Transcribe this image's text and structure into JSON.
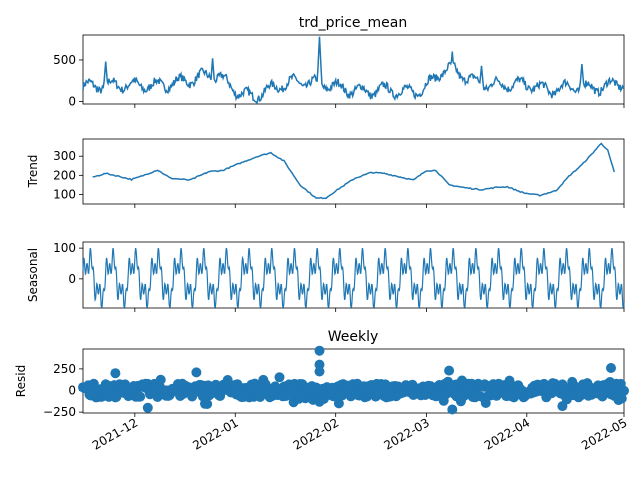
{
  "figure": {
    "suptitle": "Weekly"
  },
  "colors": {
    "series": "#1f77b4",
    "axis": "#000000",
    "background": "#ffffff"
  },
  "chart_data": [
    {
      "type": "line",
      "title": "trd_price_mean",
      "ylabel": "",
      "ylim": [
        -30,
        800
      ],
      "yticks": [
        0,
        500
      ],
      "x_start": "2021-11-15",
      "x_end": "2022-05-01",
      "anchors": [
        [
          "2021-11-15",
          180
        ],
        [
          "2021-11-25",
          200
        ],
        [
          "2021-12-05",
          190
        ],
        [
          "2021-12-10",
          200
        ],
        [
          "2021-12-18",
          260
        ],
        [
          "2021-12-24",
          320
        ],
        [
          "2021-12-27",
          300
        ],
        [
          "2022-01-02",
          110
        ],
        [
          "2022-01-06",
          50
        ],
        [
          "2022-01-10",
          120
        ],
        [
          "2022-01-15",
          200
        ],
        [
          "2022-01-20",
          240
        ],
        [
          "2022-01-25",
          220
        ],
        [
          "2022-01-30",
          200
        ],
        [
          "2022-02-05",
          140
        ],
        [
          "2022-02-12",
          120
        ],
        [
          "2022-02-17",
          150
        ],
        [
          "2022-02-22",
          110
        ],
        [
          "2022-02-28",
          140
        ],
        [
          "2022-03-05",
          350
        ],
        [
          "2022-03-09",
          400
        ],
        [
          "2022-03-15",
          250
        ],
        [
          "2022-03-20",
          200
        ],
        [
          "2022-03-28",
          210
        ],
        [
          "2022-04-02",
          200
        ],
        [
          "2022-04-08",
          130
        ],
        [
          "2022-04-14",
          180
        ],
        [
          "2022-04-22",
          160
        ],
        [
          "2022-05-01",
          230
        ]
      ],
      "peaks": [
        [
          "2021-11-22",
          480
        ],
        [
          "2021-12-25",
          520
        ],
        [
          "2022-01-27",
          780
        ],
        [
          "2022-03-09",
          600
        ],
        [
          "2022-03-18",
          430
        ],
        [
          "2022-04-18",
          450
        ]
      ]
    },
    {
      "type": "line",
      "title": "",
      "ylabel": "Trend",
      "ylim": [
        50,
        390
      ],
      "yticks": [
        100,
        200,
        300
      ],
      "x_start": "2021-11-18",
      "x_end": "2022-04-28",
      "anchors": [
        [
          "2021-11-18",
          190
        ],
        [
          "2021-11-22",
          210
        ],
        [
          "2021-11-26",
          195
        ],
        [
          "2021-11-30",
          178
        ],
        [
          "2021-12-03",
          195
        ],
        [
          "2021-12-08",
          228
        ],
        [
          "2021-12-12",
          185
        ],
        [
          "2021-12-18",
          175
        ],
        [
          "2021-12-24",
          220
        ],
        [
          "2021-12-28",
          225
        ],
        [
          "2022-01-02",
          260
        ],
        [
          "2022-01-08",
          300
        ],
        [
          "2022-01-12",
          318
        ],
        [
          "2022-01-16",
          275
        ],
        [
          "2022-01-21",
          150
        ],
        [
          "2022-01-26",
          80
        ],
        [
          "2022-01-29",
          82
        ],
        [
          "2022-02-02",
          130
        ],
        [
          "2022-02-07",
          185
        ],
        [
          "2022-02-12",
          215
        ],
        [
          "2022-02-16",
          210
        ],
        [
          "2022-02-20",
          195
        ],
        [
          "2022-02-25",
          175
        ],
        [
          "2022-03-01",
          225
        ],
        [
          "2022-03-04",
          225
        ],
        [
          "2022-03-08",
          150
        ],
        [
          "2022-03-13",
          135
        ],
        [
          "2022-03-18",
          125
        ],
        [
          "2022-03-23",
          138
        ],
        [
          "2022-03-26",
          140
        ],
        [
          "2022-03-31",
          108
        ],
        [
          "2022-04-05",
          95
        ],
        [
          "2022-04-10",
          120
        ],
        [
          "2022-04-14",
          195
        ],
        [
          "2022-04-18",
          255
        ],
        [
          "2022-04-21",
          310
        ],
        [
          "2022-04-24",
          368
        ],
        [
          "2022-04-26",
          330
        ],
        [
          "2022-04-28",
          215
        ]
      ]
    },
    {
      "type": "line",
      "title": "",
      "ylabel": "Seasonal",
      "ylim": [
        -95,
        120
      ],
      "yticks": [
        0,
        100
      ],
      "x_start": "2021-11-15",
      "x_end": "2022-05-01",
      "amplitude": 100,
      "period_days": 7
    },
    {
      "type": "scatter",
      "title": "",
      "ylabel": "Resid",
      "ylim": [
        -260,
        480
      ],
      "yticks": [
        -250,
        0,
        250
      ],
      "x_start": "2021-11-15",
      "x_end": "2022-05-01",
      "outliers": [
        [
          "2021-11-25",
          200
        ],
        [
          "2021-12-20",
          210
        ],
        [
          "2022-01-27",
          460
        ],
        [
          "2022-01-27",
          300
        ],
        [
          "2022-01-27",
          220
        ],
        [
          "2022-03-08",
          230
        ],
        [
          "2022-03-09",
          -220
        ],
        [
          "2022-04-27",
          260
        ],
        [
          "2021-12-05",
          -200
        ],
        [
          "2022-04-12",
          -180
        ]
      ]
    }
  ],
  "x_axis": {
    "tick_labels": [
      "2021-12",
      "2022-01",
      "2022-02",
      "2022-03",
      "2022-04",
      "2022-05"
    ],
    "tick_dates": [
      "2021-12-01",
      "2022-01-01",
      "2022-02-01",
      "2022-03-01",
      "2022-04-01",
      "2022-05-01"
    ],
    "range": [
      "2021-11-15",
      "2022-05-01"
    ]
  }
}
